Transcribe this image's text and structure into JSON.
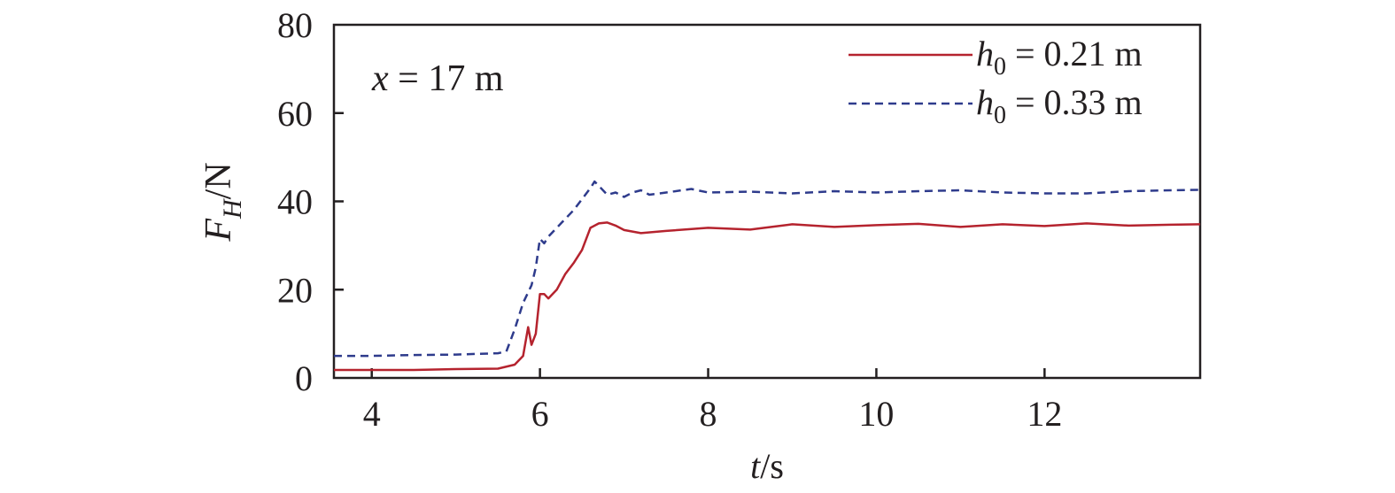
{
  "chart_data": {
    "type": "line",
    "annotation": {
      "var": "x",
      "rest": " = 17 m"
    },
    "xlabel": {
      "var": "t",
      "unit": "/s"
    },
    "ylabel": {
      "var": "F",
      "sub": "H",
      "unit": "/N"
    },
    "xlim": [
      3.55,
      13.85
    ],
    "ylim": [
      0,
      80
    ],
    "xticks": [
      4,
      6,
      8,
      10,
      12
    ],
    "yticks": [
      0,
      20,
      40,
      60,
      80
    ],
    "grid": false,
    "legend_position": "top-right",
    "series": [
      {
        "name": "h0 = 0.21 m",
        "label_var": "h",
        "label_sub": "0",
        "label_rest": " = 0.21 m",
        "color": "#b5232e",
        "dash": "solid",
        "x": [
          3.55,
          4.0,
          4.5,
          5.0,
          5.5,
          5.7,
          5.8,
          5.86,
          5.9,
          5.95,
          6.0,
          6.05,
          6.1,
          6.2,
          6.3,
          6.4,
          6.5,
          6.6,
          6.7,
          6.8,
          6.9,
          7.0,
          7.2,
          7.5,
          8.0,
          8.5,
          9.0,
          9.5,
          10.0,
          10.5,
          11.0,
          11.5,
          12.0,
          12.5,
          13.0,
          13.5,
          13.85
        ],
        "y": [
          1.8,
          1.8,
          1.8,
          2.0,
          2.1,
          3.0,
          5.0,
          11.5,
          7.5,
          10.0,
          19.0,
          19.0,
          18.0,
          20.0,
          23.5,
          26.0,
          29.0,
          34.0,
          35.0,
          35.2,
          34.5,
          33.5,
          32.8,
          33.3,
          34.0,
          33.6,
          34.8,
          34.2,
          34.6,
          34.9,
          34.2,
          34.8,
          34.4,
          35.0,
          34.5,
          34.7,
          34.8
        ]
      },
      {
        "name": "h0 = 0.33 m",
        "label_var": "h",
        "label_sub": "0",
        "label_rest": " = 0.33 m",
        "color": "#2e3b8c",
        "dash": "dashed",
        "x": [
          3.55,
          4.0,
          4.5,
          5.0,
          5.5,
          5.6,
          5.7,
          5.8,
          5.9,
          5.95,
          6.0,
          6.05,
          6.1,
          6.2,
          6.3,
          6.4,
          6.5,
          6.6,
          6.65,
          6.7,
          6.8,
          6.9,
          7.0,
          7.1,
          7.2,
          7.3,
          7.5,
          7.8,
          8.0,
          8.5,
          9.0,
          9.5,
          10.0,
          10.5,
          11.0,
          11.5,
          12.0,
          12.5,
          13.0,
          13.5,
          13.85
        ],
        "y": [
          5.0,
          5.0,
          5.2,
          5.3,
          5.6,
          6.0,
          11.0,
          17.0,
          21.0,
          25.0,
          31.5,
          30.5,
          32.0,
          34.0,
          36.0,
          38.0,
          40.5,
          43.0,
          44.5,
          43.5,
          41.5,
          42.0,
          41.0,
          42.0,
          42.5,
          41.5,
          42.0,
          42.8,
          42.0,
          42.2,
          41.8,
          42.3,
          42.0,
          42.3,
          42.5,
          42.0,
          41.8,
          41.8,
          42.3,
          42.5,
          42.6
        ]
      }
    ]
  }
}
